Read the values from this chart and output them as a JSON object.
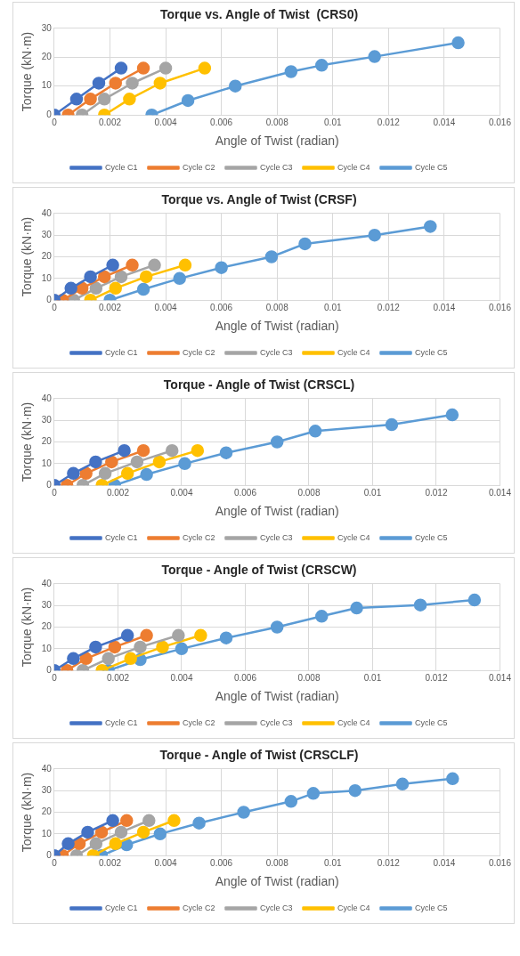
{
  "chart_data": [
    {
      "type": "line",
      "title": "Torque vs. Angle of Twist  (CRS0)",
      "xlabel": "Angle of Twist (radian)",
      "ylabel": "Torque (kN·m)",
      "xlim": [
        0,
        0.016
      ],
      "xticks": [
        0,
        0.002,
        0.004,
        0.006,
        0.008,
        0.01,
        0.012,
        0.014,
        0.016
      ],
      "ylim": [
        0,
        30
      ],
      "yticks": [
        0,
        10,
        20,
        30
      ],
      "grid": true,
      "legend": "bottom",
      "marker": "circle",
      "line_style": "solid",
      "series": [
        {
          "name": "Cycle C1",
          "color": "#4472c4",
          "x": [
            0,
            0.0008,
            0.0016,
            0.0024
          ],
          "values": [
            0,
            5.5,
            11,
            16.2
          ]
        },
        {
          "name": "Cycle C2",
          "color": "#ed7d31",
          "x": [
            0.0005,
            0.0013,
            0.0022,
            0.0032
          ],
          "values": [
            0,
            5.5,
            11,
            16.2
          ]
        },
        {
          "name": "Cycle C3",
          "color": "#a5a5a5",
          "x": [
            0.001,
            0.0018,
            0.0028,
            0.004
          ],
          "values": [
            0,
            5.5,
            11,
            16.2
          ]
        },
        {
          "name": "Cycle C4",
          "color": "#ffc000",
          "x": [
            0.0018,
            0.0027,
            0.0038,
            0.0054
          ],
          "values": [
            0,
            5.5,
            11,
            16.2
          ]
        },
        {
          "name": "Cycle C5",
          "color": "#5b9bd5",
          "x": [
            0.0035,
            0.0048,
            0.0065,
            0.0085,
            0.0096,
            0.0115,
            0.0145
          ],
          "values": [
            0,
            5,
            10,
            15,
            17.2,
            20.2,
            25
          ]
        }
      ]
    },
    {
      "type": "line",
      "title": "Torque vs. Angle of Twist (CRSF)",
      "xlabel": "Angle of Twist (radian)",
      "ylabel": "Torque (kN·m)",
      "xlim": [
        0,
        0.016
      ],
      "xticks": [
        0,
        0.002,
        0.004,
        0.006,
        0.008,
        0.01,
        0.012,
        0.014,
        0.016
      ],
      "ylim": [
        0,
        40
      ],
      "yticks": [
        0,
        10,
        20,
        30,
        40
      ],
      "grid": true,
      "legend": "bottom",
      "marker": "circle",
      "line_style": "solid",
      "series": [
        {
          "name": "Cycle C1",
          "color": "#4472c4",
          "x": [
            0,
            0.0006,
            0.0013,
            0.0021
          ],
          "values": [
            0,
            5.5,
            10.8,
            16.2
          ]
        },
        {
          "name": "Cycle C2",
          "color": "#ed7d31",
          "x": [
            0.0003,
            0.001,
            0.0018,
            0.0028
          ],
          "values": [
            0,
            5.5,
            10.8,
            16.2
          ]
        },
        {
          "name": "Cycle C3",
          "color": "#a5a5a5",
          "x": [
            0.0007,
            0.0015,
            0.0024,
            0.0036
          ],
          "values": [
            0,
            5.5,
            10.8,
            16.2
          ]
        },
        {
          "name": "Cycle C4",
          "color": "#ffc000",
          "x": [
            0.0013,
            0.0022,
            0.0033,
            0.0047
          ],
          "values": [
            0,
            5.5,
            10.8,
            16.2
          ]
        },
        {
          "name": "Cycle C5",
          "color": "#5b9bd5",
          "x": [
            0.002,
            0.0032,
            0.0045,
            0.006,
            0.0078,
            0.009,
            0.0115,
            0.0135
          ],
          "values": [
            0,
            5,
            10,
            15,
            20,
            26,
            30,
            34
          ]
        }
      ]
    },
    {
      "type": "line",
      "title": "Torque - Angle of Twist (CRSCL)",
      "xlabel": "Angle of Twist (radian)",
      "ylabel": "Torque (kN·m)",
      "xlim": [
        0,
        0.014
      ],
      "xticks": [
        0,
        0.002,
        0.004,
        0.006,
        0.008,
        0.01,
        0.012,
        0.014
      ],
      "ylim": [
        0,
        40
      ],
      "yticks": [
        0,
        10,
        20,
        30,
        40
      ],
      "grid": true,
      "legend": "bottom",
      "marker": "circle",
      "line_style": "solid",
      "series": [
        {
          "name": "Cycle C1",
          "color": "#4472c4",
          "x": [
            0,
            0.0006,
            0.0013,
            0.0022
          ],
          "values": [
            0,
            5.5,
            10.8,
            16
          ]
        },
        {
          "name": "Cycle C2",
          "color": "#ed7d31",
          "x": [
            0.0004,
            0.001,
            0.0018,
            0.0028
          ],
          "values": [
            0,
            5.5,
            10.8,
            16
          ]
        },
        {
          "name": "Cycle C3",
          "color": "#a5a5a5",
          "x": [
            0.0009,
            0.0016,
            0.0026,
            0.0037
          ],
          "values": [
            0,
            5.5,
            10.8,
            16
          ]
        },
        {
          "name": "Cycle C4",
          "color": "#ffc000",
          "x": [
            0.0015,
            0.0023,
            0.0033,
            0.0045
          ],
          "values": [
            0,
            5.5,
            10.8,
            16
          ]
        },
        {
          "name": "Cycle C5",
          "color": "#5b9bd5",
          "x": [
            0.0019,
            0.0029,
            0.0041,
            0.0054,
            0.007,
            0.0082,
            0.0106,
            0.0125
          ],
          "values": [
            0,
            5,
            10,
            15,
            20,
            25,
            28,
            32.5
          ]
        }
      ]
    },
    {
      "type": "line",
      "title": "Torque - Angle of Twist (CRSCW)",
      "xlabel": "Angle of Twist (radian)",
      "ylabel": "Torque (kN·m)",
      "xlim": [
        0,
        0.014
      ],
      "xticks": [
        0,
        0.002,
        0.004,
        0.006,
        0.008,
        0.01,
        0.012,
        0.014
      ],
      "ylim": [
        0,
        40
      ],
      "yticks": [
        0,
        10,
        20,
        30,
        40
      ],
      "grid": true,
      "legend": "bottom",
      "marker": "circle",
      "line_style": "solid",
      "series": [
        {
          "name": "Cycle C1",
          "color": "#4472c4",
          "x": [
            0,
            0.0006,
            0.0013,
            0.0023
          ],
          "values": [
            0,
            5.5,
            10.8,
            16.2
          ]
        },
        {
          "name": "Cycle C2",
          "color": "#ed7d31",
          "x": [
            0.0004,
            0.001,
            0.0019,
            0.0029
          ],
          "values": [
            0,
            5.5,
            10.8,
            16.2
          ]
        },
        {
          "name": "Cycle C3",
          "color": "#a5a5a5",
          "x": [
            0.0009,
            0.0017,
            0.0027,
            0.0039
          ],
          "values": [
            0,
            5.5,
            10.8,
            16.2
          ]
        },
        {
          "name": "Cycle C4",
          "color": "#ffc000",
          "x": [
            0.0015,
            0.0024,
            0.0034,
            0.0046
          ],
          "values": [
            0,
            5.5,
            10.8,
            16.2
          ]
        },
        {
          "name": "Cycle C5",
          "color": "#5b9bd5",
          "x": [
            0.0017,
            0.0027,
            0.004,
            0.0054,
            0.007,
            0.0084,
            0.0095,
            0.0115,
            0.0132
          ],
          "values": [
            0,
            5,
            10,
            15,
            20,
            25,
            28.8,
            30.2,
            32.5
          ]
        }
      ]
    },
    {
      "type": "line",
      "title": "Torque - Angle of Twist (CRSCLF)",
      "xlabel": "Angle of Twist (radian)",
      "ylabel": "Torque (kN·m)",
      "xlim": [
        0,
        0.016
      ],
      "xticks": [
        0,
        0.002,
        0.004,
        0.006,
        0.008,
        0.01,
        0.012,
        0.014,
        0.016
      ],
      "ylim": [
        0,
        40
      ],
      "yticks": [
        0,
        10,
        20,
        30,
        40
      ],
      "grid": true,
      "legend": "bottom",
      "marker": "circle",
      "line_style": "solid",
      "series": [
        {
          "name": "Cycle C1",
          "color": "#4472c4",
          "x": [
            0,
            0.0005,
            0.0012,
            0.0021
          ],
          "values": [
            0,
            5.5,
            10.8,
            16.2
          ]
        },
        {
          "name": "Cycle C2",
          "color": "#ed7d31",
          "x": [
            0.0003,
            0.0009,
            0.0017,
            0.0026
          ],
          "values": [
            0,
            5.5,
            10.8,
            16.2
          ]
        },
        {
          "name": "Cycle C3",
          "color": "#a5a5a5",
          "x": [
            0.0008,
            0.0015,
            0.0024,
            0.0034
          ],
          "values": [
            0,
            5.5,
            10.8,
            16.2
          ]
        },
        {
          "name": "Cycle C4",
          "color": "#ffc000",
          "x": [
            0.0014,
            0.0022,
            0.0032,
            0.0043
          ],
          "values": [
            0,
            5.5,
            10.8,
            16.2
          ]
        },
        {
          "name": "Cycle C5",
          "color": "#5b9bd5",
          "x": [
            0.0017,
            0.0026,
            0.0038,
            0.0052,
            0.0068,
            0.0085,
            0.0093,
            0.0108,
            0.0125,
            0.0143
          ],
          "values": [
            0,
            5,
            10,
            15,
            20,
            25,
            28.7,
            30,
            33,
            35.5
          ]
        }
      ]
    }
  ]
}
